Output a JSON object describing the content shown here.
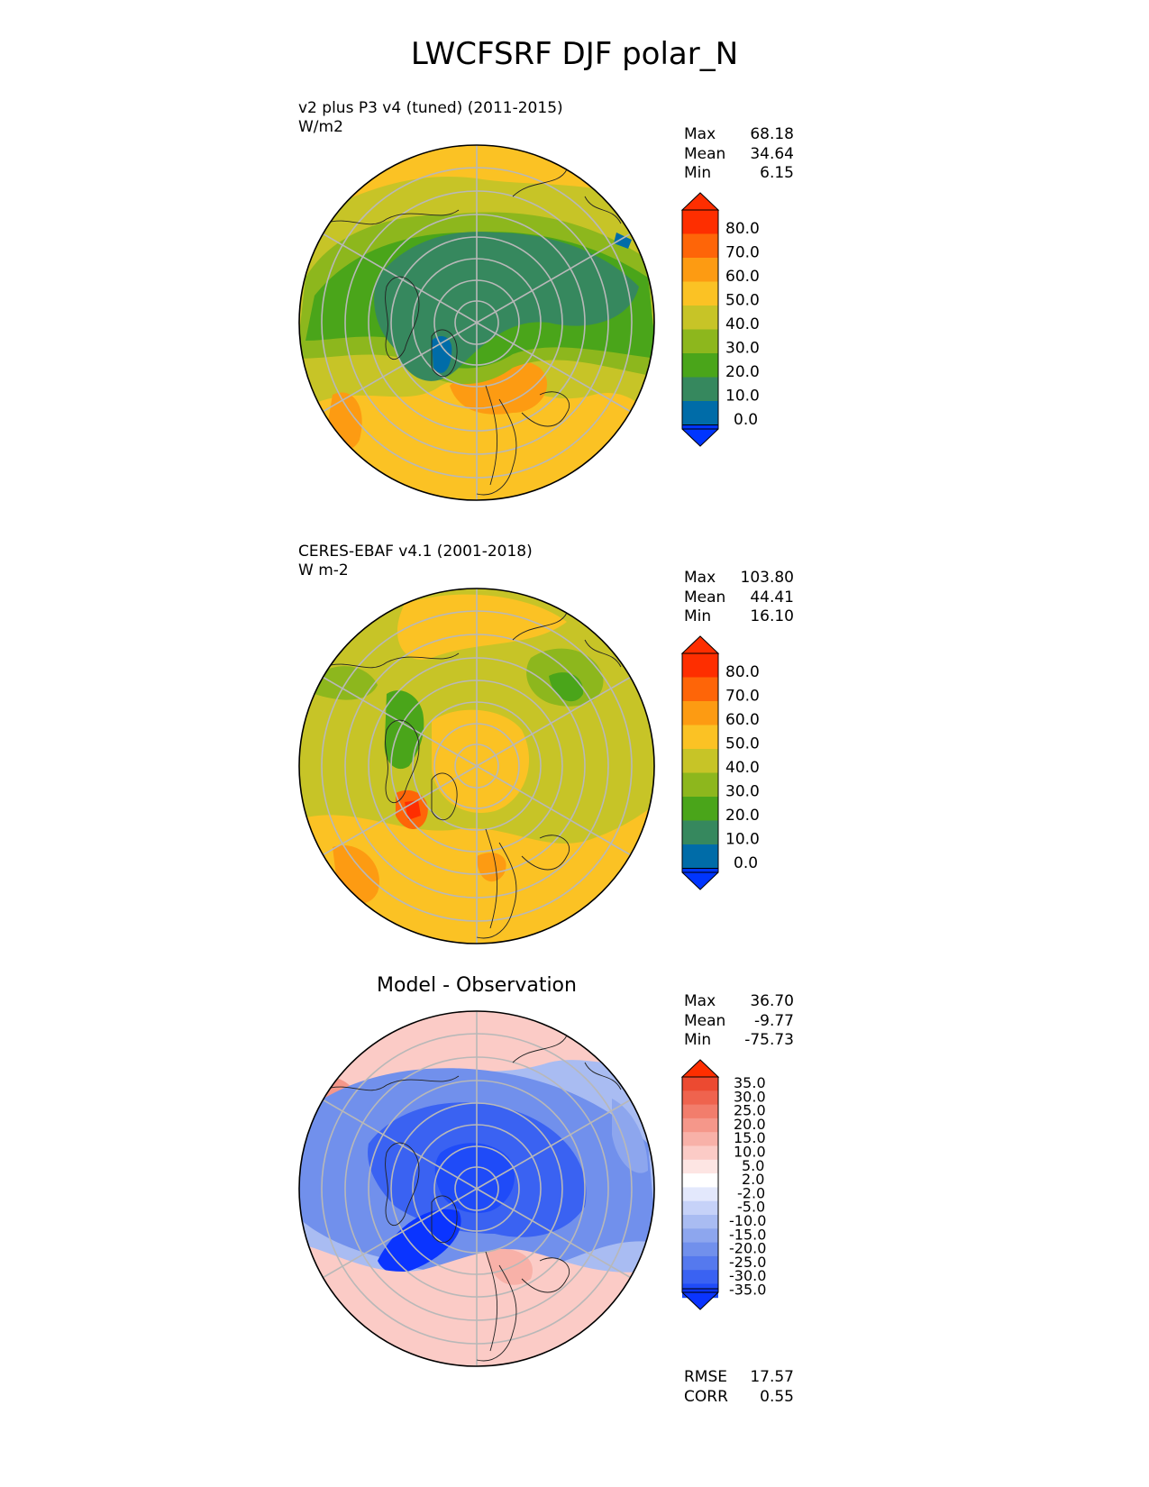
{
  "title": "LWCFSRF DJF polar_N",
  "panels": [
    {
      "id": "test",
      "label": "v2 plus P3 v4 (tuned) (2011-2015)",
      "units": "W/m2",
      "stats": [
        [
          "Max",
          "68.18"
        ],
        [
          "Mean",
          "34.64"
        ],
        [
          "Min",
          "6.15"
        ]
      ],
      "colorbar_ticks": [
        "80.0",
        "70.0",
        "60.0",
        "50.0",
        "40.0",
        "30.0",
        "20.0",
        "10.0",
        "0.0"
      ],
      "colors": [
        "#0035ff",
        "#006ca8",
        "#36885e",
        "#4aa51a",
        "#8db71d",
        "#c7c427",
        "#fbc224",
        "#fd9b12",
        "#fe6508",
        "#fe2e00"
      ]
    },
    {
      "id": "ref",
      "label": "CERES-EBAF v4.1 (2001-2018)",
      "units": "W m-2",
      "stats": [
        [
          "Max",
          "103.80"
        ],
        [
          "Mean",
          "44.41"
        ],
        [
          "Min",
          "16.10"
        ]
      ],
      "colorbar_ticks": [
        "80.0",
        "70.0",
        "60.0",
        "50.0",
        "40.0",
        "30.0",
        "20.0",
        "10.0",
        "0.0"
      ],
      "colors": [
        "#0035ff",
        "#006ca8",
        "#36885e",
        "#4aa51a",
        "#8db71d",
        "#c7c427",
        "#fbc224",
        "#fd9b12",
        "#fe6508",
        "#fe2e00"
      ]
    },
    {
      "id": "diff",
      "label": "Model - Observation",
      "stats": [
        [
          "Max",
          "36.70"
        ],
        [
          "Mean",
          "-9.77"
        ],
        [
          "Min",
          "-75.73"
        ]
      ],
      "colorbar_ticks": [
        "35.0",
        "30.0",
        "25.0",
        "20.0",
        "15.0",
        "10.0",
        "5.0",
        "2.0",
        "-2.0",
        "-5.0",
        "-10.0",
        "-15.0",
        "-20.0",
        "-25.0",
        "-30.0",
        "-35.0"
      ],
      "colors": [
        "#0a34ff",
        "#1f4bf8",
        "#3a62f2",
        "#5579ee",
        "#7190ec",
        "#8da6ee",
        "#a9bcf2",
        "#c6d2f8",
        "#e3e8fc",
        "#ffffff",
        "#fde5e3",
        "#fbcbc6",
        "#f8b1a8",
        "#f5978a",
        "#f27d6c",
        "#ef634e",
        "#ec4a31",
        "#fe2e00"
      ],
      "summary": [
        [
          "RMSE",
          "17.57"
        ],
        [
          "CORR",
          "0.55"
        ]
      ]
    }
  ],
  "chart_data": [
    {
      "type": "heatmap",
      "title": "v2 plus P3 v4 (tuned) (2011-2015)",
      "units": "W/m2",
      "projection": "north polar stereographic",
      "levels": [
        0,
        10,
        20,
        30,
        40,
        50,
        60,
        70,
        80
      ],
      "max": 68.18,
      "mean": 34.64,
      "min": 6.15
    },
    {
      "type": "heatmap",
      "title": "CERES-EBAF v4.1 (2001-2018)",
      "units": "W m-2",
      "projection": "north polar stereographic",
      "levels": [
        0,
        10,
        20,
        30,
        40,
        50,
        60,
        70,
        80
      ],
      "max": 103.8,
      "mean": 44.41,
      "min": 16.1
    },
    {
      "type": "heatmap",
      "title": "Model - Observation",
      "projection": "north polar stereographic",
      "levels": [
        -35,
        -30,
        -25,
        -20,
        -15,
        -10,
        -5,
        -2,
        2,
        5,
        10,
        15,
        20,
        25,
        30,
        35
      ],
      "max": 36.7,
      "mean": -9.77,
      "min": -75.73,
      "rmse": 17.57,
      "corr": 0.55
    }
  ]
}
